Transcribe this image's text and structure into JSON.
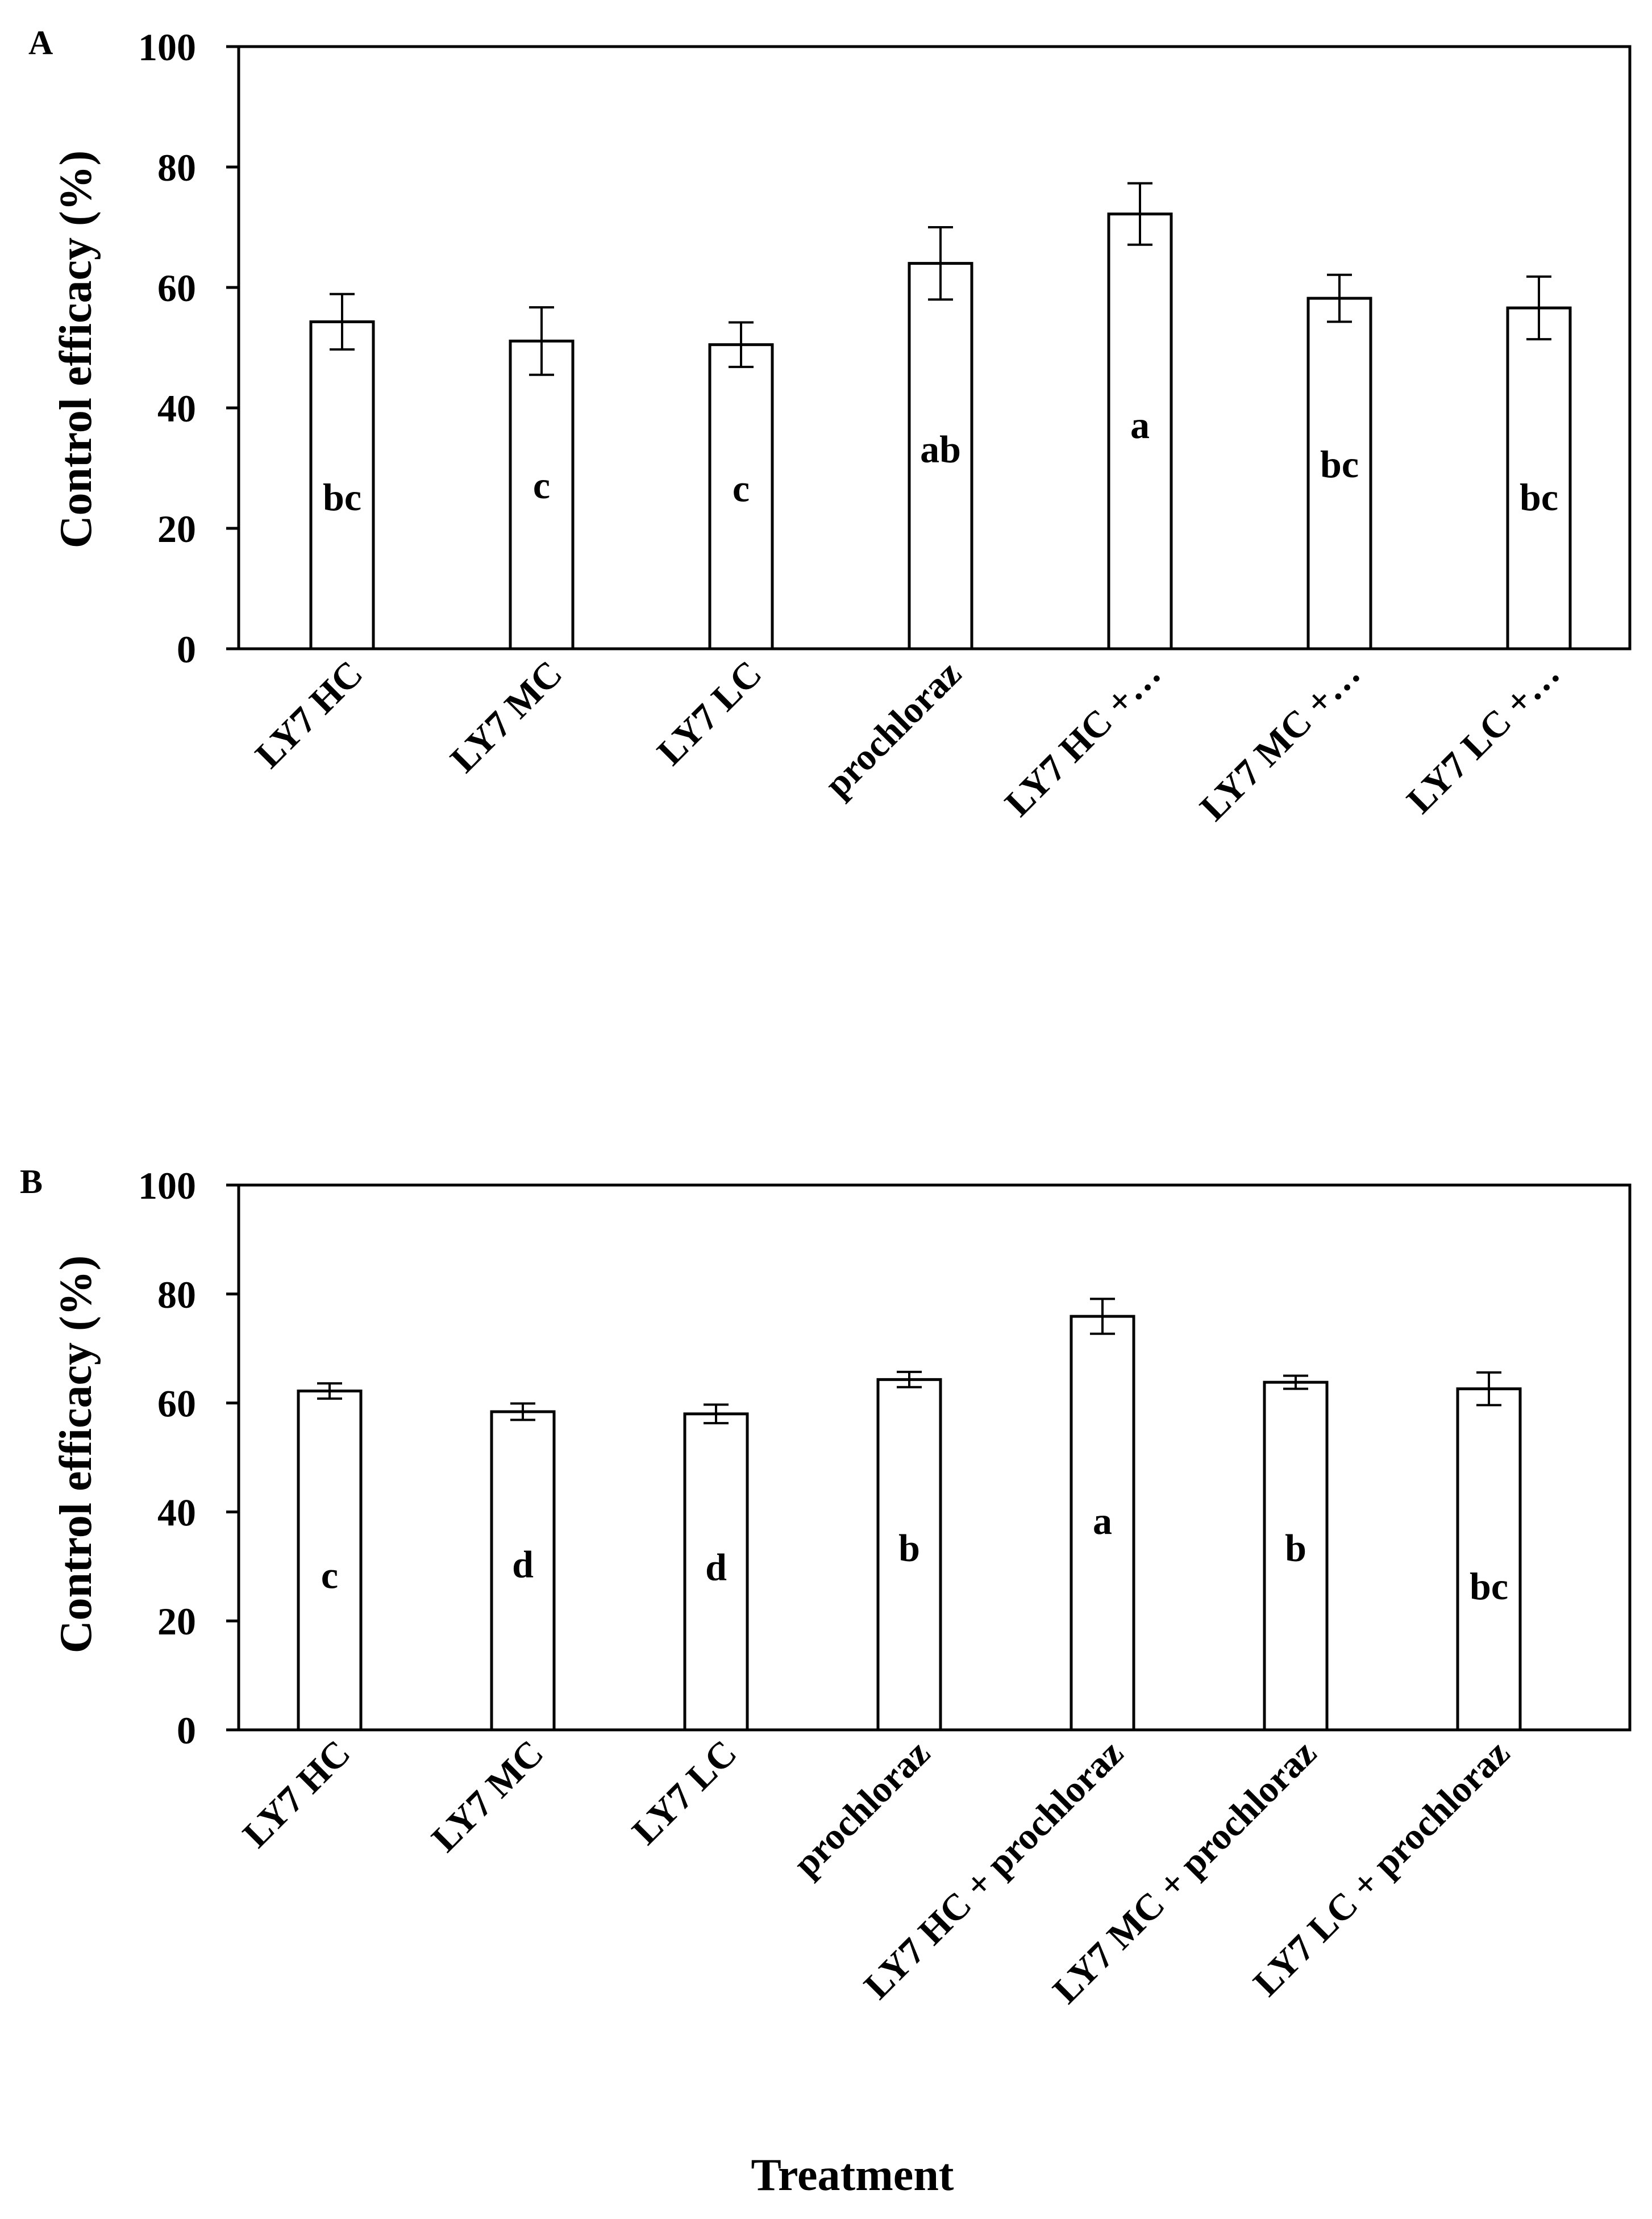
{
  "x_axis_title": "Treatment",
  "chart_data": [
    {
      "type": "bar",
      "panel_label": "A",
      "title": "",
      "ylabel": "Control efficacy  (%)",
      "xlabel": "",
      "ylim": [
        0,
        100
      ],
      "yticks": [
        0,
        20,
        40,
        60,
        80,
        100
      ],
      "grid": false,
      "categories": [
        "LY7 HC",
        "LY7 MC",
        "LY7 LC",
        "prochloraz",
        "LY7 HC +…",
        "LY7 MC +…",
        "LY7 LC +…"
      ],
      "values": [
        54.3,
        51.1,
        50.5,
        64.0,
        72.2,
        58.2,
        56.6
      ],
      "errors": [
        4.6,
        5.6,
        3.7,
        6.0,
        5.1,
        3.9,
        5.2
      ],
      "significance_letters": [
        "bc",
        "c",
        "c",
        "ab",
        "a",
        "bc",
        "bc"
      ],
      "letter_values": [
        23,
        25,
        24.5,
        31,
        35,
        28.5,
        23
      ]
    },
    {
      "type": "bar",
      "panel_label": "B",
      "title": "",
      "ylabel": "Control efficacy (%)",
      "xlabel": "",
      "ylim": [
        0,
        100
      ],
      "yticks": [
        0,
        20,
        40,
        60,
        80,
        100
      ],
      "grid": false,
      "categories": [
        "LY7 HC",
        "LY7 MC",
        "LY7 LC",
        "prochloraz",
        "LY7 HC + prochloraz",
        "LY7 MC + prochloraz",
        "LY7 LC + prochloraz"
      ],
      "values": [
        62.2,
        58.4,
        58.0,
        64.3,
        75.9,
        63.8,
        62.6
      ],
      "errors": [
        1.4,
        1.5,
        1.7,
        1.4,
        3.2,
        1.2,
        3.0
      ],
      "significance_letters": [
        "c",
        "d",
        "d",
        "b",
        "a",
        "b",
        "bc"
      ],
      "letter_values": [
        26,
        28,
        27.5,
        31,
        36,
        31,
        24
      ]
    }
  ]
}
